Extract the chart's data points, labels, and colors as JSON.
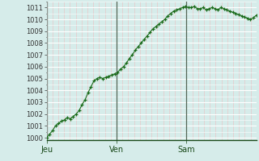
{
  "ylim": [
    999.8,
    1011.5
  ],
  "yticks": [
    1000,
    1001,
    1002,
    1003,
    1004,
    1005,
    1006,
    1007,
    1008,
    1009,
    1010,
    1011
  ],
  "xtick_labels": [
    "Jeu",
    "Ven",
    "Sam"
  ],
  "xtick_positions": [
    0,
    24,
    48
  ],
  "vline_positions": [
    0,
    24,
    48
  ],
  "background_color": "#d6ecea",
  "hgrid_color": "#ffffff",
  "vgrid_color": "#e8c8c8",
  "vline_color": "#556655",
  "line_color": "#1a6b1a",
  "marker_color": "#1a6b1a",
  "total_hours": 72,
  "pressure_values": [
    1000.0,
    1000.3,
    1000.6,
    1001.0,
    1001.2,
    1001.4,
    1001.5,
    1001.7,
    1001.6,
    1001.8,
    1002.0,
    1002.3,
    1002.8,
    1003.2,
    1003.8,
    1004.3,
    1004.8,
    1005.0,
    1005.1,
    1005.0,
    1005.1,
    1005.2,
    1005.3,
    1005.4,
    1005.5,
    1005.8,
    1006.0,
    1006.3,
    1006.7,
    1007.0,
    1007.4,
    1007.7,
    1008.0,
    1008.3,
    1008.6,
    1008.9,
    1009.2,
    1009.4,
    1009.6,
    1009.8,
    1010.0,
    1010.3,
    1010.5,
    1010.7,
    1010.8,
    1010.9,
    1011.0,
    1011.1,
    1011.0,
    1011.0,
    1011.1,
    1010.9,
    1010.9,
    1011.0,
    1010.8,
    1010.9,
    1011.0,
    1010.9,
    1010.8,
    1011.0,
    1010.9,
    1010.8,
    1010.7,
    1010.6,
    1010.5,
    1010.4,
    1010.3,
    1010.2,
    1010.1,
    1010.0,
    1010.15,
    1010.35
  ],
  "ytick_fontsize": 6,
  "xtick_fontsize": 7,
  "figsize": [
    3.2,
    2.0
  ],
  "dpi": 100
}
